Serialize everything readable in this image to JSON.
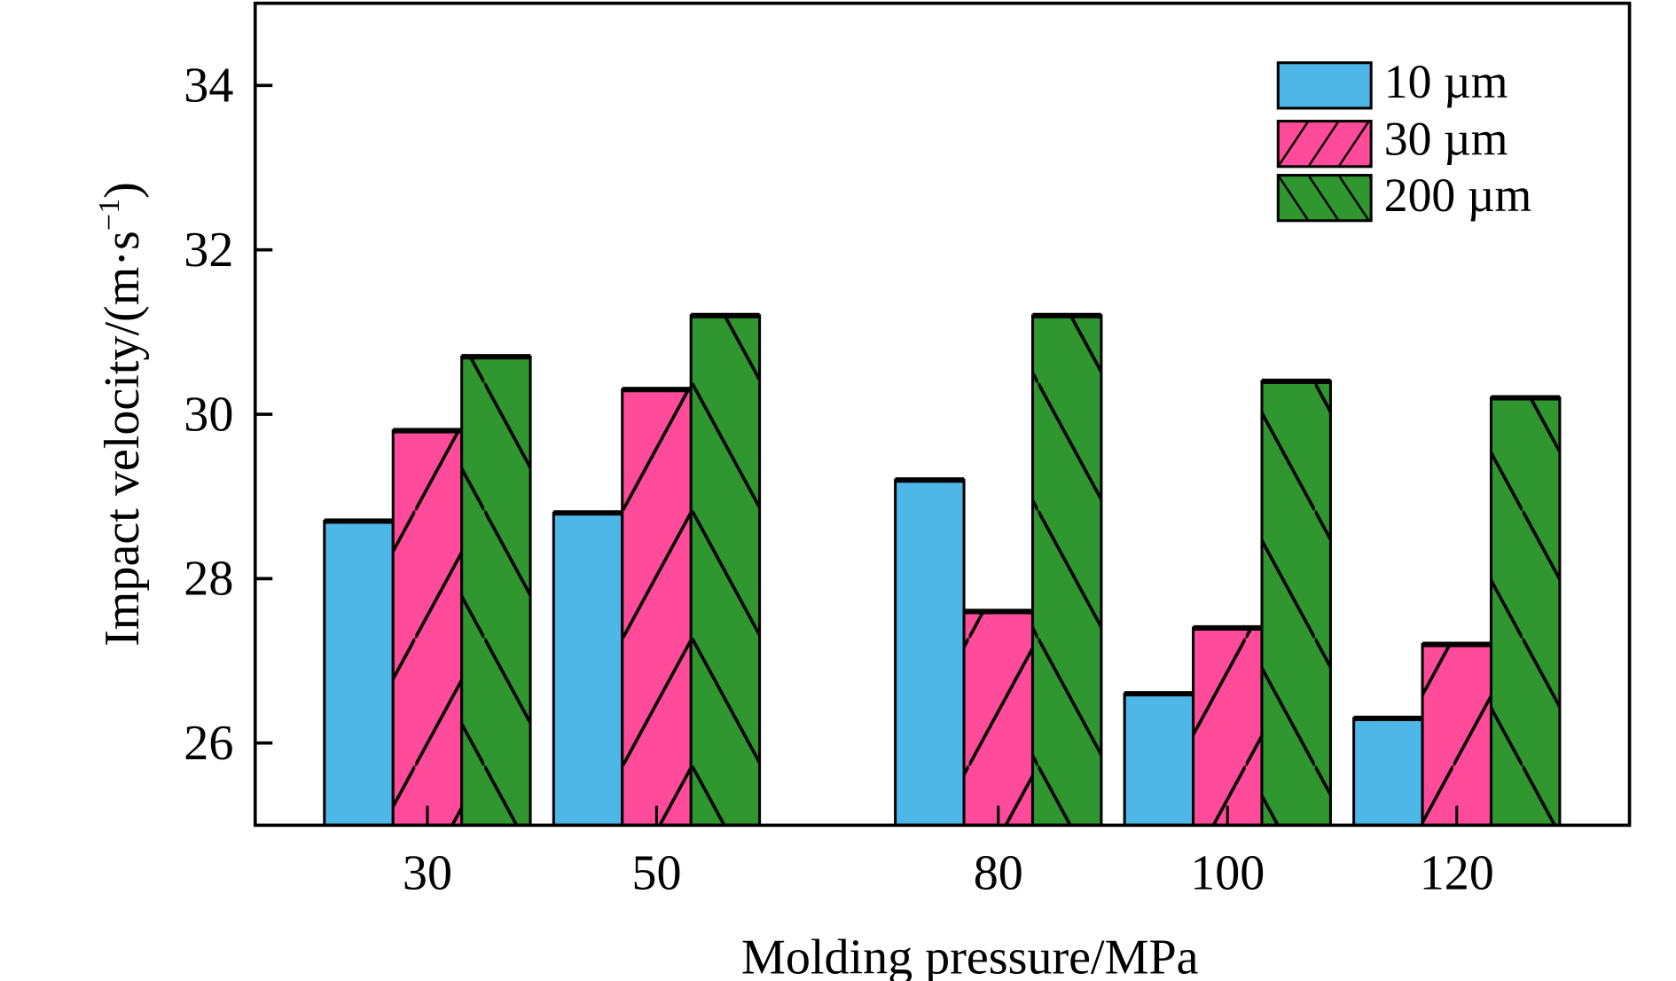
{
  "chart_data": {
    "type": "bar",
    "title": "",
    "xlabel": "Molding pressure/MPa",
    "ylabel": "Impact velocity/(m·s",
    "ylabel_sup": "−1",
    "ylabel_end": ")",
    "categories": [
      "30",
      "50",
      "80",
      "100",
      "120"
    ],
    "yticks": [
      "26",
      "28",
      "30",
      "32",
      "34"
    ],
    "ylim": [
      25,
      35
    ],
    "grid": false,
    "legend_position": "top-right",
    "series": [
      {
        "name": "10 µm",
        "color": "#4fb6e8",
        "hatch": "none",
        "values": [
          28.7,
          28.8,
          29.2,
          26.6,
          26.3
        ]
      },
      {
        "name": "30 µm",
        "color": "#ff4b99",
        "hatch": "forward",
        "values": [
          29.8,
          30.3,
          27.6,
          27.4,
          27.2
        ]
      },
      {
        "name": "200 µm",
        "color": "#2f9630",
        "hatch": "back",
        "values": [
          30.7,
          31.2,
          31.2,
          30.4,
          30.2
        ]
      }
    ]
  }
}
